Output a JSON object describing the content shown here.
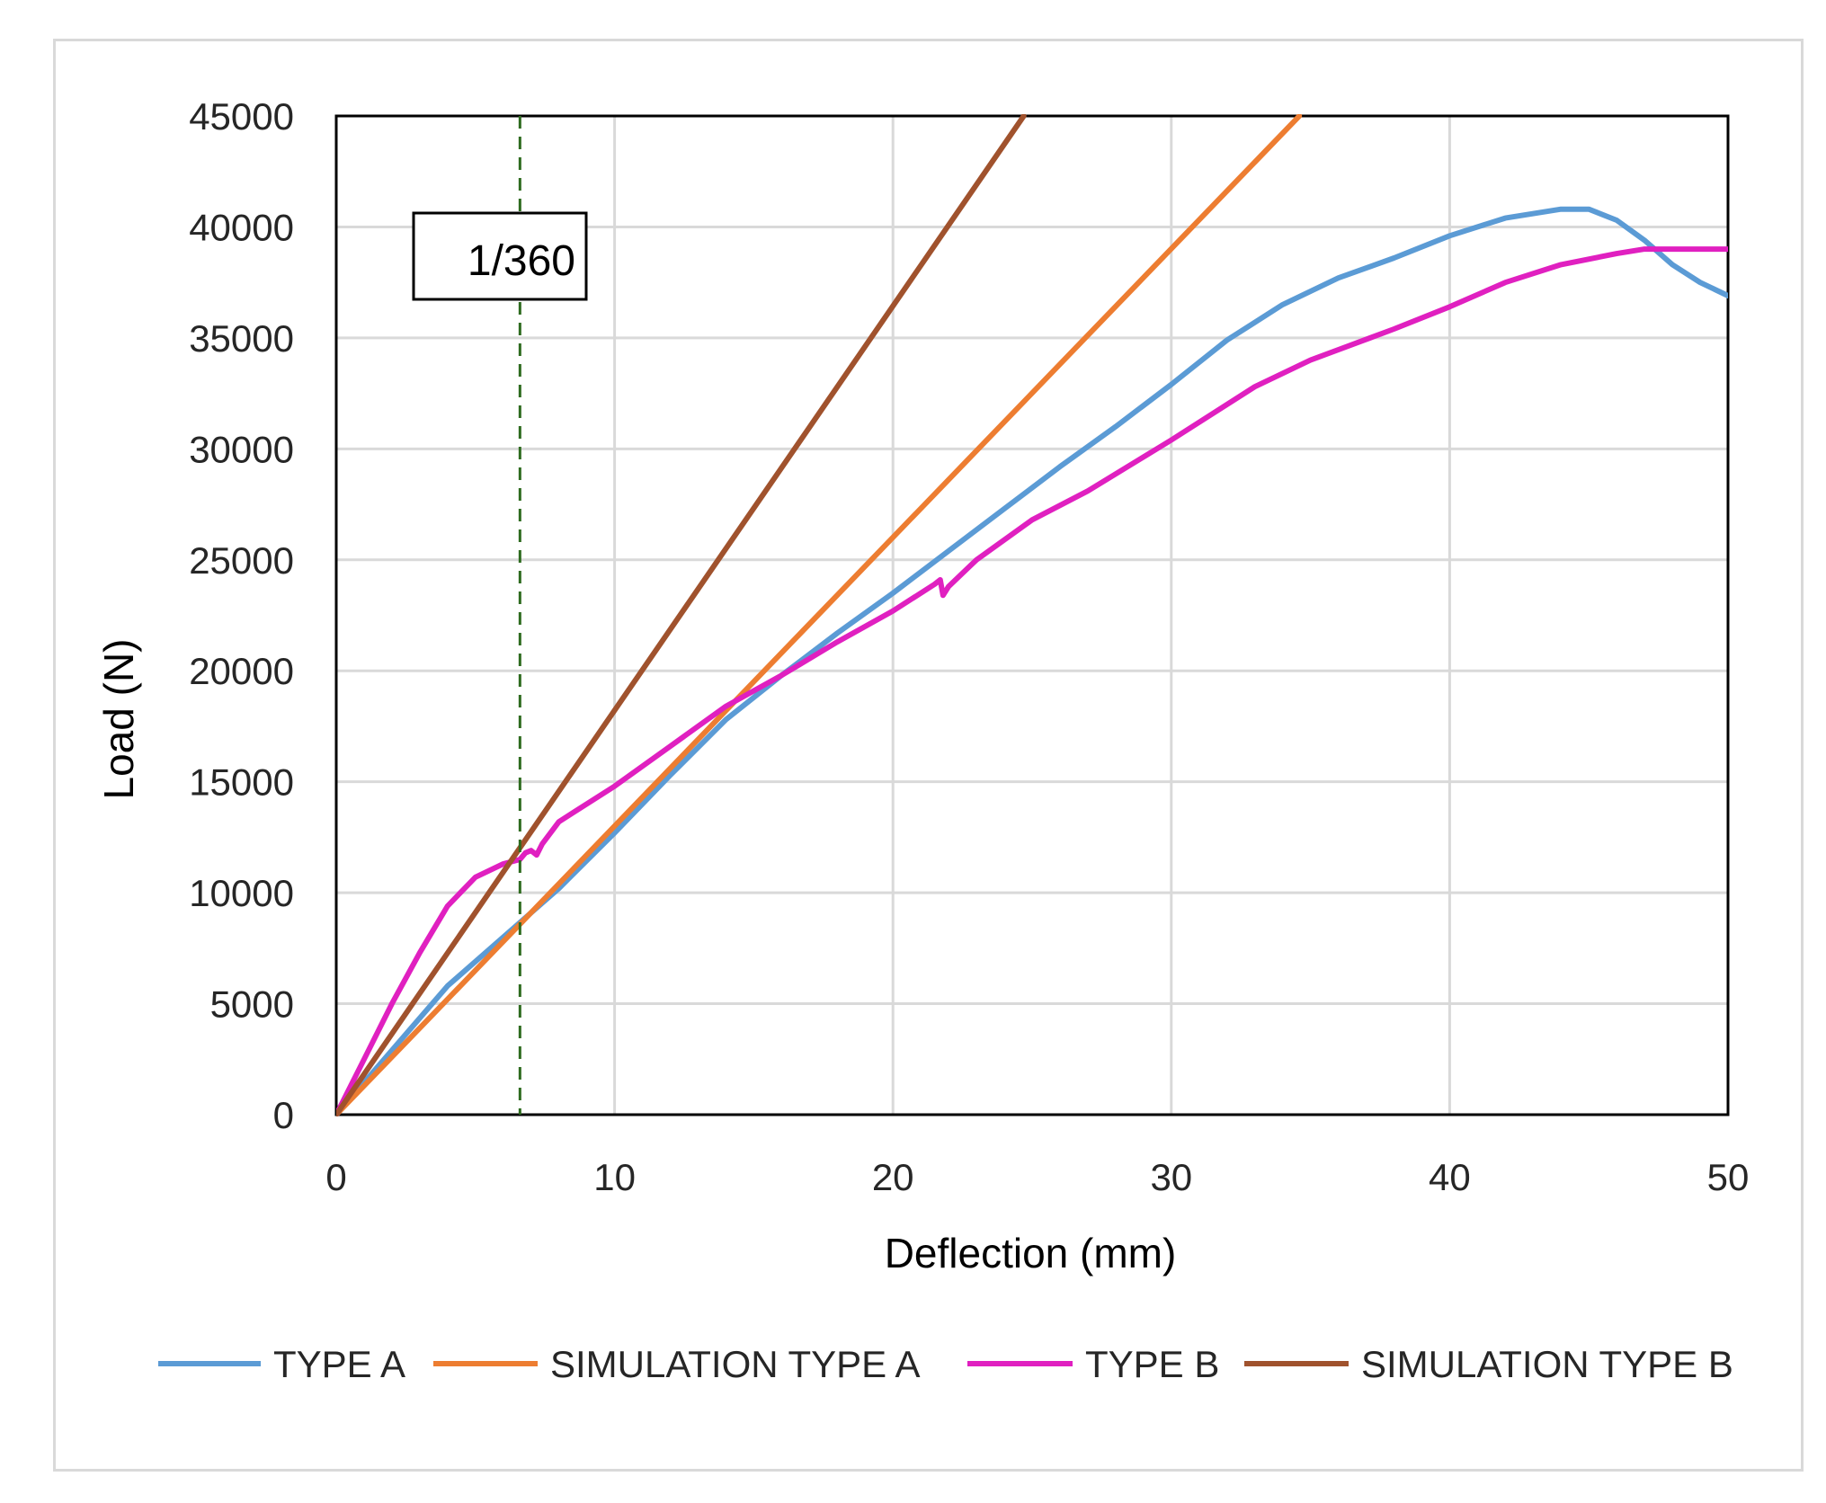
{
  "chart_data": {
    "type": "line",
    "title": "",
    "xlabel": "Deflection (mm)",
    "ylabel": "Load (N)",
    "xlim": [
      0,
      50
    ],
    "ylim": [
      0,
      45000
    ],
    "x_ticks": [
      0,
      10,
      20,
      30,
      40,
      50
    ],
    "y_ticks": [
      0,
      5000,
      10000,
      15000,
      20000,
      25000,
      30000,
      35000,
      40000,
      45000
    ],
    "grid": true,
    "legend_position": "bottom",
    "annotations": [
      {
        "type": "vertical-dashed-line",
        "x": 6.6,
        "color": "#2e6b1f",
        "label": "1/360"
      }
    ],
    "series": [
      {
        "name": "TYPE A",
        "color": "#5b9bd5",
        "x": [
          0,
          2,
          4,
          6,
          8,
          10,
          12,
          14,
          16,
          18,
          20,
          22,
          24,
          26,
          28,
          30,
          32,
          34,
          36,
          38,
          40,
          42,
          44,
          45,
          46,
          47,
          48,
          49,
          50
        ],
        "y": [
          0,
          2900,
          5800,
          8000,
          10200,
          12700,
          15300,
          17800,
          19800,
          21700,
          23500,
          25400,
          27300,
          29200,
          31000,
          32900,
          34900,
          36500,
          37700,
          38600,
          39600,
          40400,
          40800,
          40800,
          40300,
          39400,
          38300,
          37500,
          36900
        ]
      },
      {
        "name": "SIMULATION TYPE A",
        "color": "#ed7d31",
        "x": [
          0,
          34.6
        ],
        "y": [
          0,
          45000
        ]
      },
      {
        "name": "TYPE B",
        "color": "#e020c0",
        "x": [
          0,
          1,
          2,
          3,
          4,
          5,
          6,
          6.6,
          6.8,
          7.0,
          7.2,
          7.4,
          8,
          10,
          12,
          14,
          16,
          18,
          20,
          21.5,
          21.7,
          21.8,
          22.0,
          23,
          25,
          27,
          30,
          33,
          35,
          38,
          40,
          42,
          44,
          46,
          47,
          48,
          50
        ],
        "y": [
          0,
          2500,
          5000,
          7300,
          9400,
          10700,
          11300,
          11500,
          11800,
          11900,
          11700,
          12200,
          13200,
          14800,
          16600,
          18400,
          19800,
          21300,
          22700,
          23900,
          24100,
          23400,
          23800,
          25000,
          26800,
          28100,
          30400,
          32800,
          34000,
          35400,
          36400,
          37500,
          38300,
          38800,
          39000,
          39000,
          39000
        ]
      },
      {
        "name": "SIMULATION TYPE B",
        "color": "#a0522d",
        "x": [
          0,
          24.7
        ],
        "y": [
          0,
          45000
        ]
      }
    ]
  }
}
